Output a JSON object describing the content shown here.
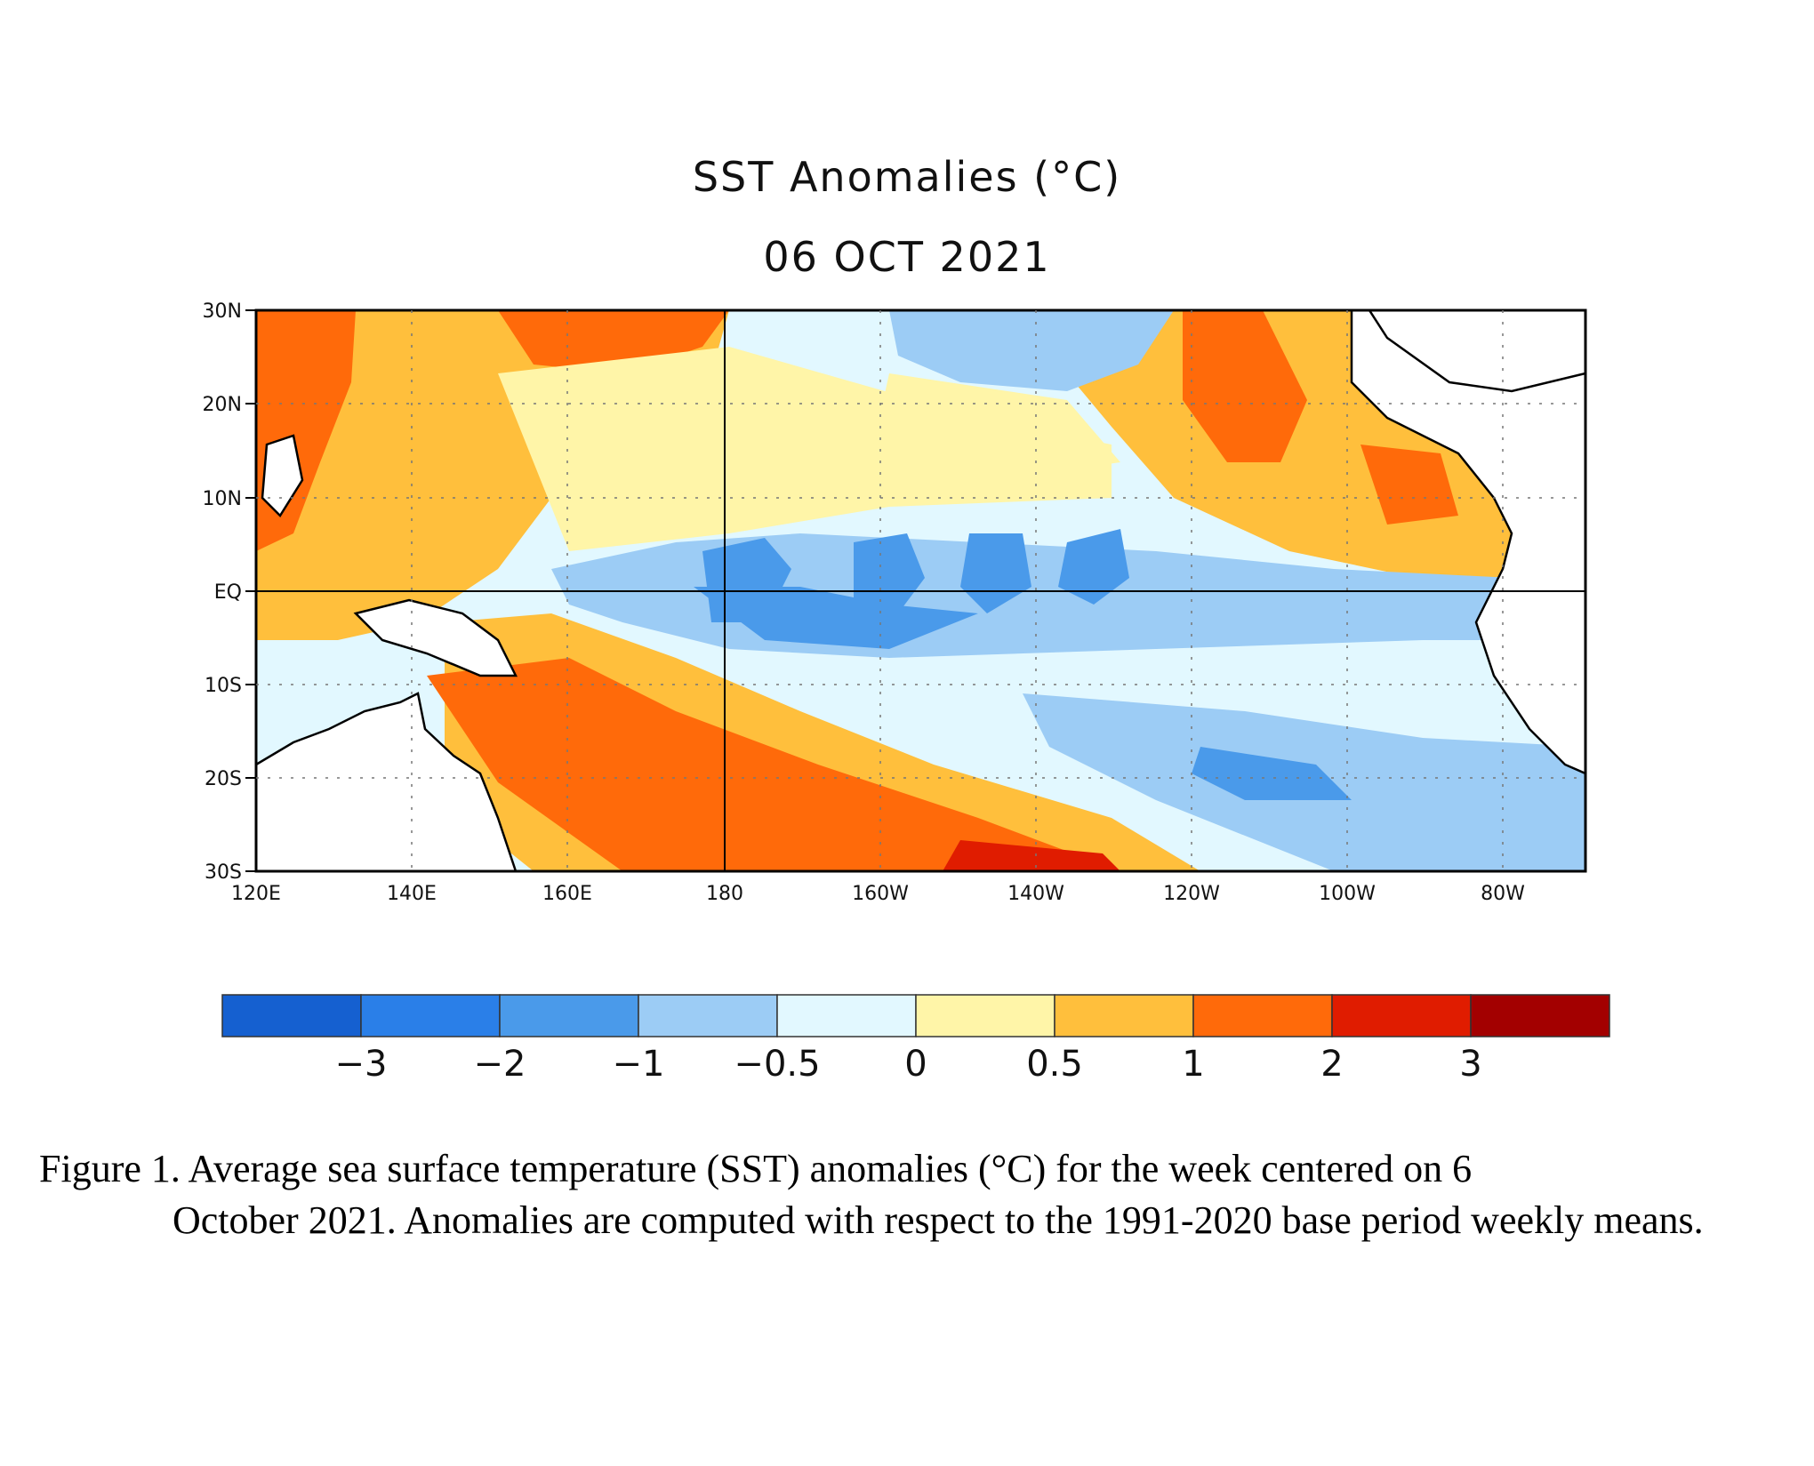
{
  "map": {
    "title": "SST Anomalies (°C)",
    "subtitle": "06 OCT 2021",
    "lat_labels": [
      "30N",
      "20N",
      "10N",
      "EQ",
      "10S",
      "20S",
      "30S"
    ],
    "lon_labels": [
      "120E",
      "140E",
      "160E",
      "180",
      "160W",
      "140W",
      "120W",
      "100W",
      "80W"
    ]
  },
  "colorbar": {
    "colors": [
      "#1560d0",
      "#2a7fe8",
      "#4a9aea",
      "#9cccf5",
      "#e2f8ff",
      "#fff5a8",
      "#ffbf3c",
      "#ff6a0a",
      "#e01c00",
      "#a30000"
    ],
    "tick_labels": [
      "−3",
      "−2",
      "−1",
      "−0.5",
      "0",
      "0.5",
      "1",
      "2",
      "3"
    ]
  },
  "caption": {
    "line1": "Figure 1. Average sea surface temperature (SST) anomalies (°C) for the week centered on 6",
    "rest": "October 2021.  Anomalies are computed with respect to the 1991-2020 base period weekly means."
  }
}
